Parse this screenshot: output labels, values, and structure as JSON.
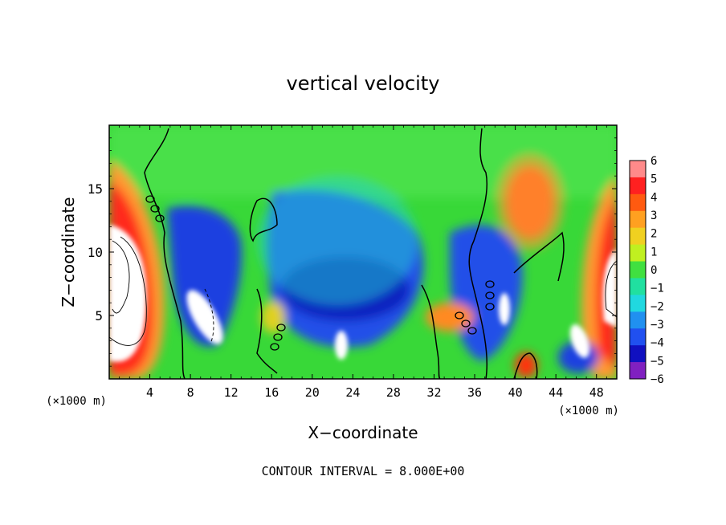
{
  "chart_data": {
    "type": "heatmap",
    "title": "vertical velocity",
    "xlabel": "X−coordinate",
    "ylabel": "Z−coordinate",
    "x_scale_note": "(×1000 m)",
    "footer_note": "CONTOUR INTERVAL = 8.000E+00",
    "xlim": [
      0,
      50
    ],
    "ylim": [
      0,
      20
    ],
    "x_ticks": [
      4,
      8,
      12,
      16,
      20,
      24,
      28,
      32,
      36,
      40,
      44,
      48
    ],
    "x_tick_labels": [
      "4",
      "8",
      "12",
      "16",
      "20",
      "24",
      "28",
      "32",
      "36",
      "40",
      "44",
      "48"
    ],
    "y_ticks": [
      5,
      10,
      15
    ],
    "y_tick_labels": [
      "5",
      "10",
      "15"
    ],
    "colorbar": {
      "levels": [
        6,
        5,
        4,
        3,
        2,
        1,
        0,
        -1,
        -2,
        -3,
        -4,
        -5,
        -6
      ],
      "level_labels": [
        "6",
        "5",
        "4",
        "3",
        "2",
        "1",
        "0",
        "−1",
        "−2",
        "−3",
        "−4",
        "−5",
        "−6"
      ],
      "colors": [
        "#ff8a8a",
        "#ff2020",
        "#ff5a10",
        "#ffa020",
        "#f0d020",
        "#c0f020",
        "#40e040",
        "#20e0a0",
        "#20d8e0",
        "#2090f0",
        "#2050f0",
        "#1010c0",
        "#8020c0"
      ]
    }
  }
}
